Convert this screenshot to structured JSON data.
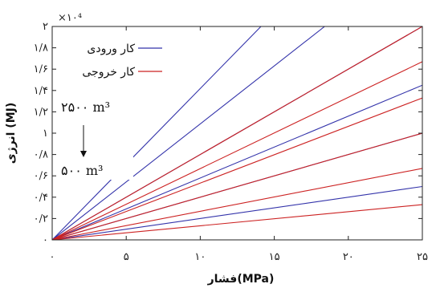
{
  "chart_data": {
    "type": "line",
    "xlabel": "فشار(MPa)",
    "ylabel": "انرژی (MJ)",
    "y_multiplier": "×۱۰⁴",
    "xlim": [
      0,
      25
    ],
    "ylim": [
      0,
      20000
    ],
    "x_ticks": [
      0,
      5,
      10,
      15,
      20,
      25
    ],
    "x_tick_labels": [
      "۰",
      "۵",
      "۱۰",
      "۱۵",
      "۲۰",
      "۲۵"
    ],
    "y_ticks": [
      0,
      2000,
      4000,
      6000,
      8000,
      10000,
      12000,
      14000,
      16000,
      18000,
      20000
    ],
    "y_tick_labels": [
      "۰",
      "۰/۲",
      "۰/۴",
      "۰/۶",
      "۰/۸",
      "۱",
      "۱/۲",
      "۱/۴",
      "۱/۶",
      "۱/۸",
      "۲"
    ],
    "grid": false,
    "legend_position": "top-left",
    "series": [
      {
        "name": "کار ورودی",
        "color": "#3333aa",
        "lines": [
          {
            "x": [
              0,
              25
            ],
            "y": [
              0,
              5000
            ]
          },
          {
            "x": [
              0,
              25
            ],
            "y": [
              0,
              10000
            ]
          },
          {
            "x": [
              0,
              25
            ],
            "y": [
              0,
              14500
            ]
          },
          {
            "x": [
              0,
              25
            ],
            "y": [
              0,
              20000
            ]
          },
          {
            "x": [
              0,
              18.4
            ],
            "y": [
              0,
              20000
            ]
          },
          {
            "x": [
              0,
              14.1
            ],
            "y": [
              0,
              20000
            ]
          }
        ]
      },
      {
        "name": "کار خروجی",
        "color": "#cc2222",
        "lines": [
          {
            "x": [
              0,
              25
            ],
            "y": [
              0,
              3300
            ]
          },
          {
            "x": [
              0,
              25
            ],
            "y": [
              0,
              6700
            ]
          },
          {
            "x": [
              0,
              25
            ],
            "y": [
              0,
              10000
            ]
          },
          {
            "x": [
              0,
              25
            ],
            "y": [
              0,
              13300
            ]
          },
          {
            "x": [
              0,
              25
            ],
            "y": [
              0,
              16700
            ]
          },
          {
            "x": [
              0,
              25
            ],
            "y": [
              0,
              20000
            ]
          }
        ]
      }
    ],
    "annotations": {
      "top_label": "۲۵۰۰ m³",
      "bottom_label": "۵۰۰ m³"
    }
  }
}
